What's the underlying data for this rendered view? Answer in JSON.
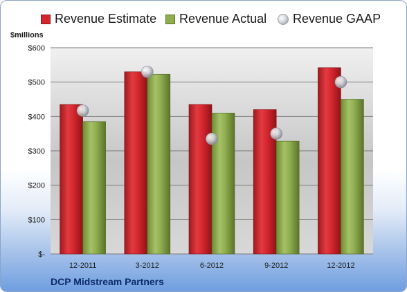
{
  "company_label": "DCP Midstream Partners",
  "unit_label": "$millions",
  "legend": [
    {
      "label": "Revenue Estimate",
      "marker": "red-square"
    },
    {
      "label": "Revenue Actual",
      "marker": "green-square"
    },
    {
      "label": "Revenue GAAP",
      "marker": "gray-sphere"
    }
  ],
  "colors": {
    "estimate": "#d4262e",
    "actual": "#8fac4f",
    "gaap": "#c8cad0"
  },
  "chart_data": {
    "type": "bar",
    "categories": [
      "12-2011",
      "3-2012",
      "6-2012",
      "9-2012",
      "12-2012"
    ],
    "series": [
      {
        "name": "Revenue Estimate",
        "values": [
          435,
          530,
          435,
          420,
          542
        ]
      },
      {
        "name": "Revenue Actual",
        "values": [
          385,
          523,
          410,
          328,
          450
        ]
      },
      {
        "name": "Revenue GAAP",
        "values": [
          417,
          530,
          335,
          350,
          500
        ],
        "style": "marker"
      }
    ],
    "yticks": [
      0,
      100,
      200,
      300,
      400,
      500,
      600
    ],
    "ytick_labels": [
      "$-",
      "$100",
      "$200",
      "$300",
      "$400",
      "$500",
      "$600"
    ],
    "ylim": [
      0,
      600
    ],
    "grid": true,
    "legend_position": "top"
  }
}
